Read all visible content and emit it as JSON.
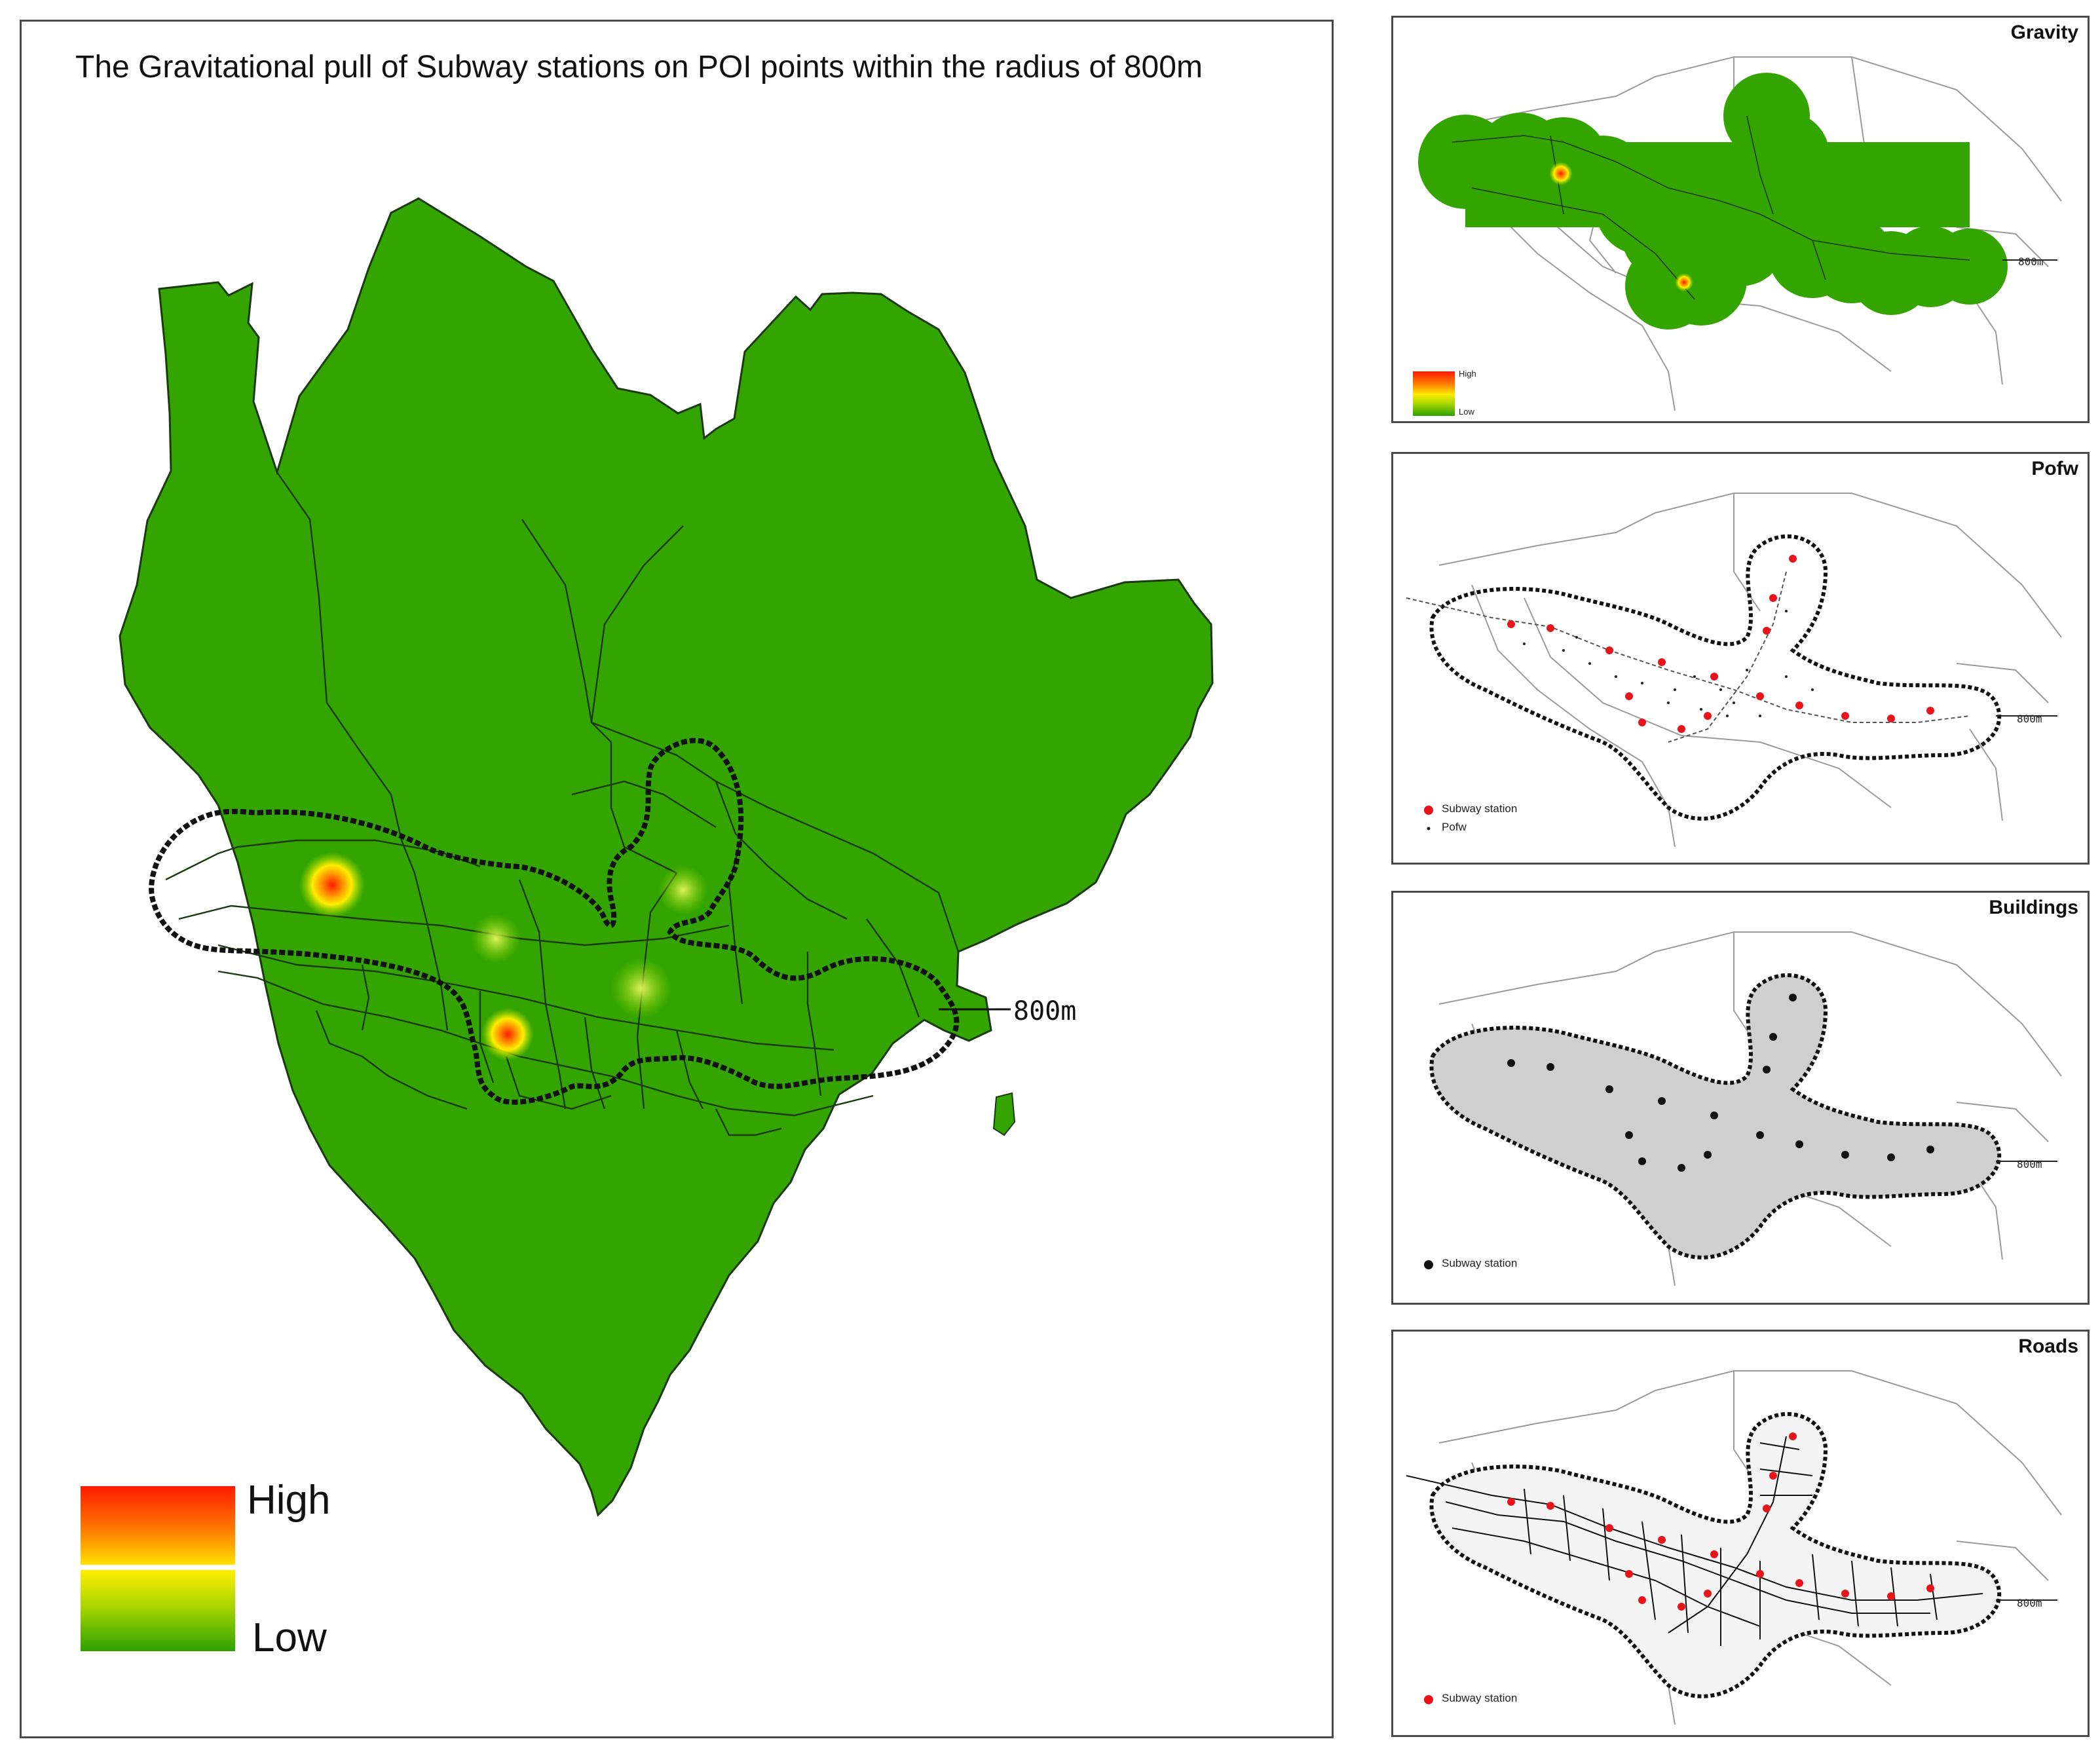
{
  "main": {
    "title": "The Gravitational pull of Subway stations on POI points within the radius of 800m",
    "radius_label": "800m",
    "legend": {
      "high": "High",
      "low": "Low"
    },
    "colors": {
      "district_fill": "#34a400",
      "high": "#ff1a00",
      "mid": "#ffee00",
      "low": "#2ea000"
    }
  },
  "panels": [
    {
      "id": "gravity",
      "title": "Gravity",
      "radius_label": "800m",
      "legend_high": "High",
      "legend_low": "Low"
    },
    {
      "id": "pofw",
      "title": "Pofw",
      "radius_label": "800m",
      "legend_station": "Subway station",
      "legend_points": "Pofw"
    },
    {
      "id": "buildings",
      "title": "Buildings",
      "radius_label": "800m",
      "legend_station": "Subway station"
    },
    {
      "id": "roads",
      "title": "Roads",
      "radius_label": "800m",
      "legend_station": "Subway station"
    }
  ]
}
